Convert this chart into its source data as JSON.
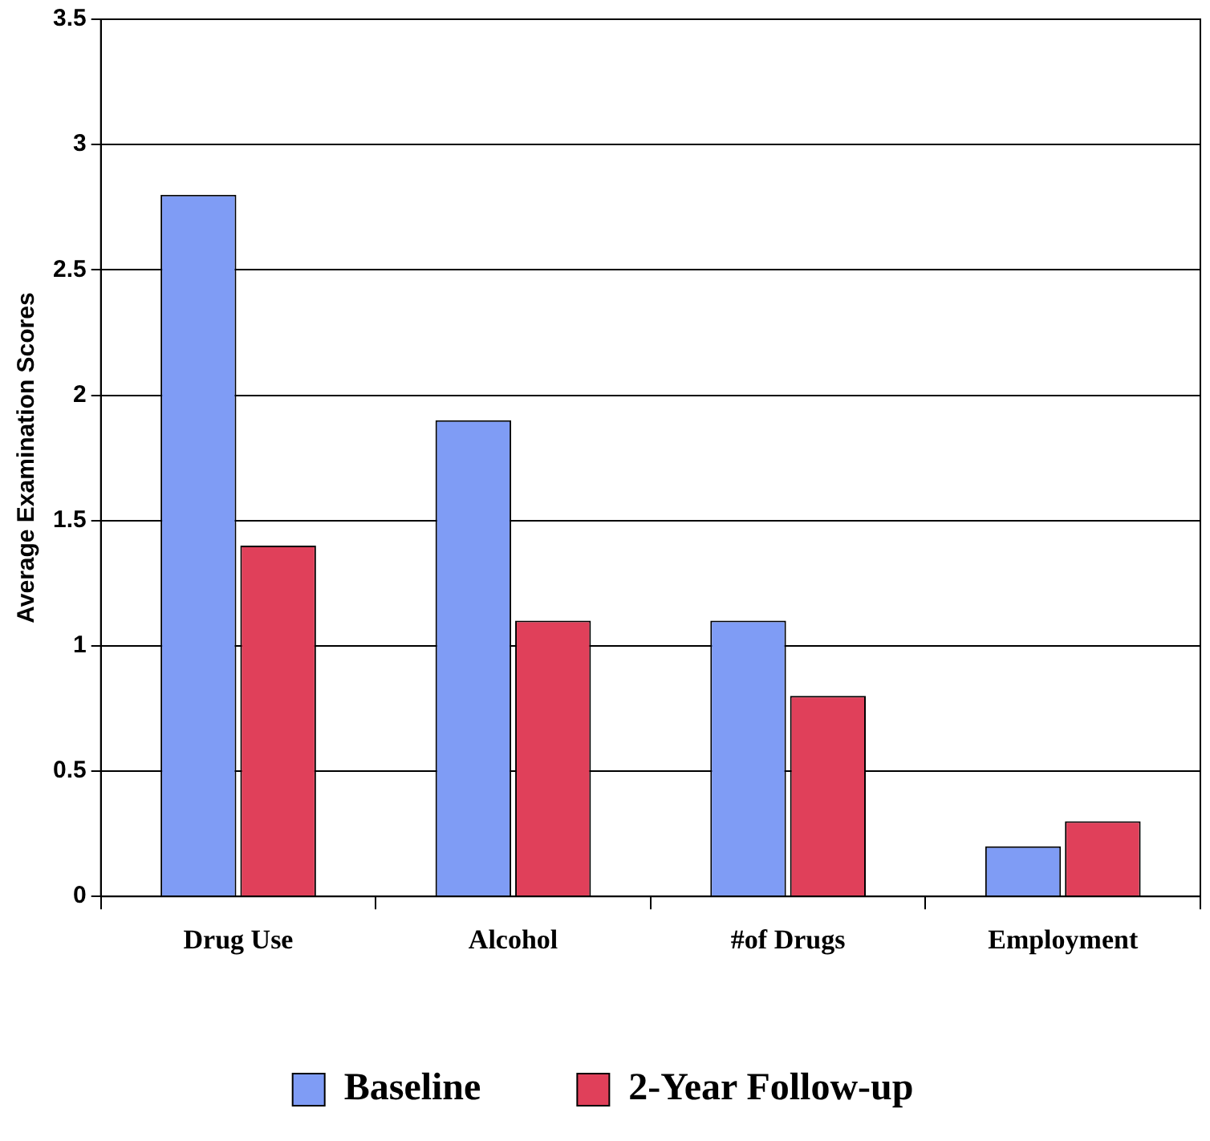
{
  "chart_data": {
    "type": "bar",
    "ylabel": "Average Examination Scores",
    "categories": [
      "Drug Use",
      "Alcohol",
      "#of Drugs",
      "Employment"
    ],
    "series": [
      {
        "name": "Baseline",
        "color": "#7f9cf5",
        "values": [
          2.8,
          1.9,
          1.1,
          0.2
        ]
      },
      {
        "name": "2-Year Follow-up",
        "color": "#e0405a",
        "values": [
          1.4,
          1.1,
          0.8,
          0.3
        ]
      }
    ],
    "ylim": [
      0,
      3.5
    ],
    "yticks": [
      0,
      0.5,
      1,
      1.5,
      2,
      2.5,
      3,
      3.5
    ],
    "grid": "y",
    "legend": "bottom"
  }
}
